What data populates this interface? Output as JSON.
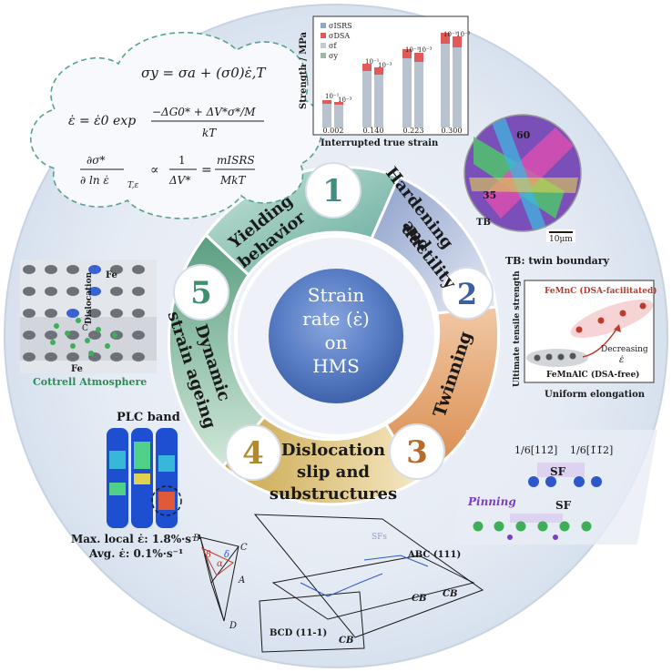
{
  "center": {
    "line1": "Strain",
    "line2": "rate (ε̇)",
    "line3": "on",
    "line4": "HMS"
  },
  "segments": [
    {
      "number": "1",
      "label_lines": [
        "Yielding",
        "behavior"
      ],
      "color": "#5fa89b"
    },
    {
      "number": "2",
      "label_lines": [
        "Hardening",
        "and",
        "ductility"
      ],
      "color": "#6f86b8"
    },
    {
      "number": "3",
      "label_lines": [
        "Twinning"
      ],
      "color": "#d9894a"
    },
    {
      "number": "4",
      "label_lines": [
        "Dislocation",
        "slip and",
        "substructures"
      ],
      "color": "#c9a64a"
    },
    {
      "number": "5",
      "label_lines": [
        "Dynamic",
        "strain ageing"
      ],
      "color": "#5a9e80"
    }
  ],
  "equations": {
    "eq1": "σy = σa + (σ0)ε̇,T",
    "eq2_lhs": "ε̇ = ε̇0 exp",
    "eq2_num": "−ΔG0* + ΔV*σ*/M",
    "eq2_den": "kT",
    "eq3_lhs_num": "∂σ*",
    "eq3_lhs_den": "∂ ln ε̇",
    "eq3_sub": "T,ε",
    "eq3_mid_num": "1",
    "eq3_mid_den": "ΔV*",
    "eq3_rhs_num": "mISRS",
    "eq3_rhs_den": "MkT"
  },
  "bar_chart": {
    "ylabel": "Strength / MPa",
    "xlabel": "Interrupted true strain",
    "x_ticks": [
      "0.002",
      "0.140",
      "0.223",
      "0.300"
    ],
    "y_ticks": [
      "400",
      "800",
      "1200",
      "1600"
    ],
    "legend": [
      "σISRS",
      "σDSA",
      "σf",
      "σy"
    ],
    "rate_labels": [
      "10⁻¹",
      "10⁻³"
    ]
  },
  "ebsd": {
    "label_60": "60",
    "label_35": "35",
    "label_tb": "TB",
    "scale": "10μm",
    "caption": "TB: twin boundary"
  },
  "uts_chart": {
    "ylabel": "Ultimate tensile strength",
    "xlabel": "Uniform elongation",
    "fe_mnc": "FeMnC (DSA-facilitated)",
    "fe_mnalc": "FeMnAlC (DSA-free)",
    "decreasing": "Decreasing",
    "eps": "ε̇"
  },
  "cottrell": {
    "fe_top": "Fe",
    "dislocation": "Dislocation",
    "c_label": "C",
    "fe_bottom": "Fe",
    "caption": "Cottrell Atmosphere"
  },
  "plc": {
    "title": "PLC band",
    "max": "Max. local ε̇: 1.8%·s⁻¹",
    "avg": "Avg. ε̇: 0.1%·s⁻¹"
  },
  "sf": {
    "vec1": "1/6[112̄]",
    "vec2": "1/6[1̄1̄2]",
    "sf1": "SF",
    "pinning": "Pinning",
    "sf2": "SF"
  },
  "slip": {
    "sfs": "SFs",
    "abc": "ABC (111)",
    "bcd": "BCD (11-1)",
    "cb": "CB",
    "B": "B",
    "C": "C",
    "A": "A",
    "D": "D",
    "alpha": "α",
    "delta": "δ",
    "beta": "β"
  },
  "colors": {
    "ring_bg": "#e4ebf3",
    "inner": "#4f73b8",
    "accent_red": "#c0392b"
  }
}
